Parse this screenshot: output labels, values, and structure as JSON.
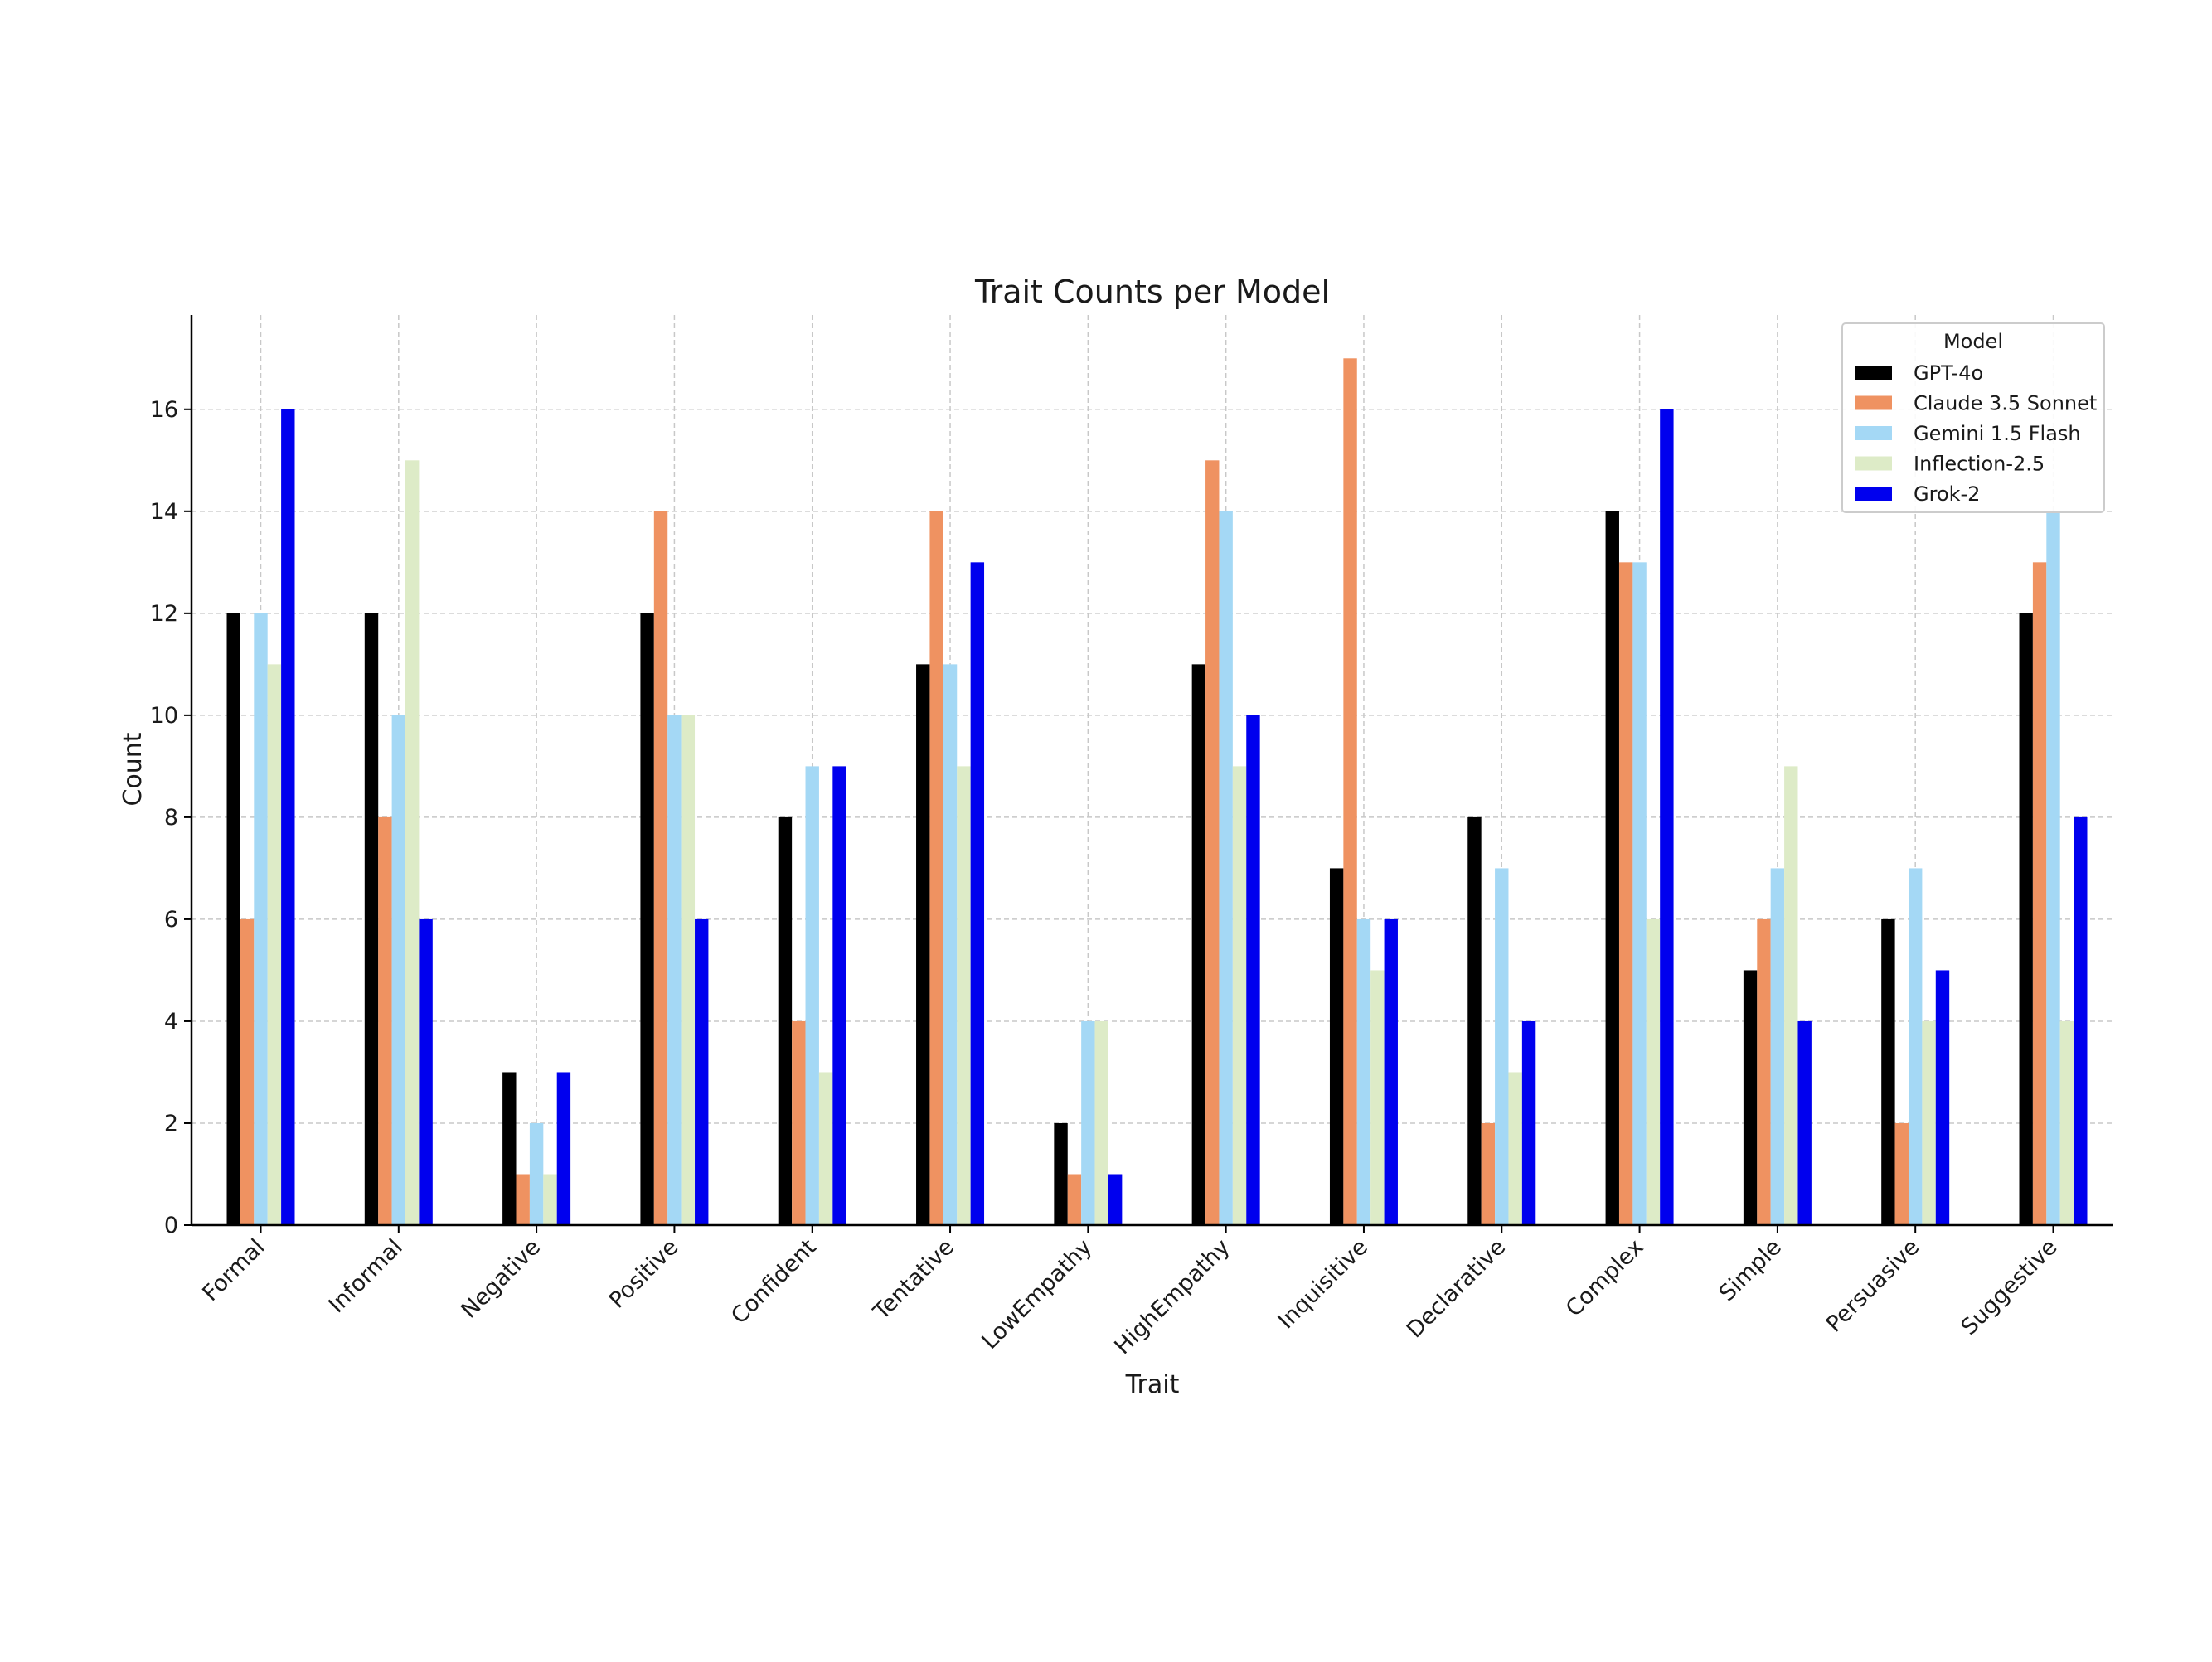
{
  "chart_data": {
    "type": "bar",
    "title": "Trait Counts per Model",
    "xlabel": "Trait",
    "ylabel": "Count",
    "ylim": [
      0,
      17.85
    ],
    "yticks": [
      0,
      2,
      4,
      6,
      8,
      10,
      12,
      14,
      16
    ],
    "grid": true,
    "legend_title": "Model",
    "legend_position": "top-right",
    "categories": [
      "Formal",
      "Informal",
      "Negative",
      "Positive",
      "Confident",
      "Tentative",
      "LowEmpathy",
      "HighEmpathy",
      "Inquisitive",
      "Declarative",
      "Complex",
      "Simple",
      "Persuasive",
      "Suggestive"
    ],
    "series": [
      {
        "name": "GPT-4o",
        "color": "#000000",
        "values": [
          12,
          12,
          3,
          12,
          8,
          11,
          2,
          11,
          7,
          8,
          14,
          5,
          6,
          12
        ]
      },
      {
        "name": "Claude 3.5 Sonnet",
        "color": "#EF9261",
        "values": [
          6,
          8,
          1,
          14,
          4,
          14,
          1,
          15,
          17,
          2,
          13,
          6,
          2,
          13
        ]
      },
      {
        "name": "Gemini 1.5 Flash",
        "color": "#A4D8F5",
        "values": [
          12,
          10,
          2,
          10,
          9,
          11,
          4,
          14,
          6,
          7,
          13,
          7,
          7,
          14
        ]
      },
      {
        "name": "Inflection-2.5",
        "color": "#DDEBC7",
        "values": [
          11,
          15,
          1,
          10,
          3,
          9,
          4,
          9,
          5,
          3,
          6,
          9,
          4,
          4
        ]
      },
      {
        "name": "Grok-2",
        "color": "#0000EE",
        "values": [
          16,
          6,
          3,
          6,
          9,
          13,
          1,
          10,
          6,
          4,
          16,
          4,
          5,
          8
        ]
      }
    ]
  }
}
